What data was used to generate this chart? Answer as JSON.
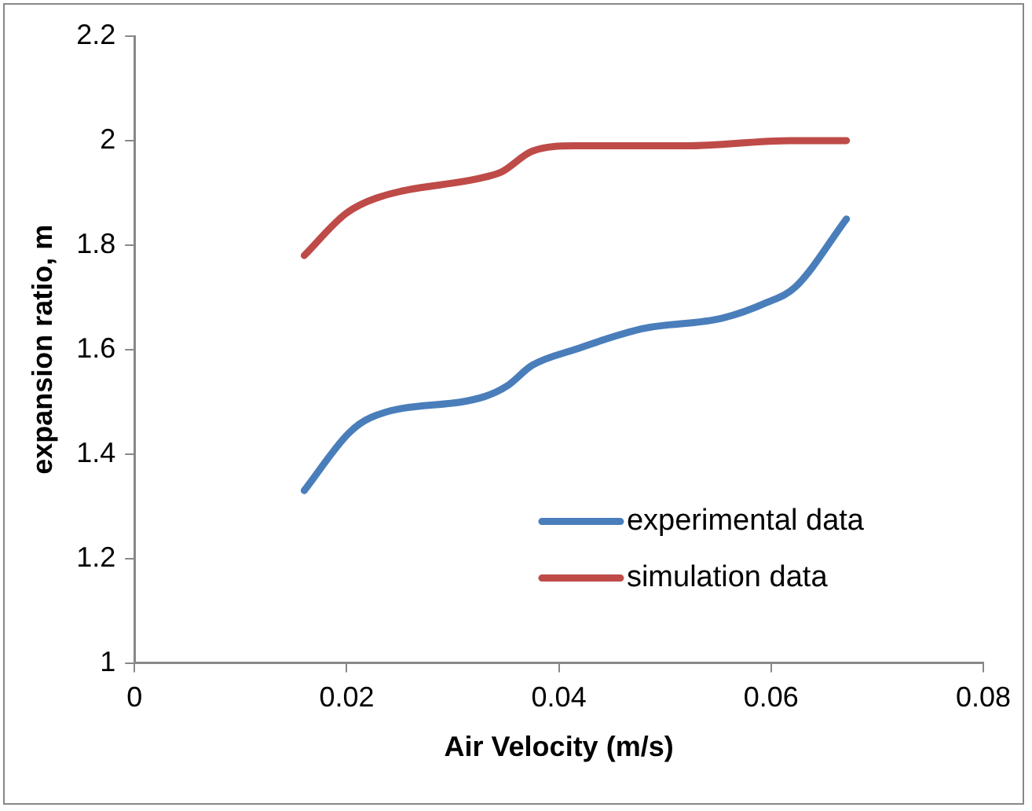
{
  "chart_data": {
    "type": "line",
    "xlabel": "Air Velocity (m/s)",
    "ylabel": "expansion ratio, m",
    "xlim": [
      0,
      0.08
    ],
    "xticks": [
      0,
      0.02,
      0.04,
      0.06,
      0.08
    ],
    "ylim": [
      1,
      2.2
    ],
    "yticks": [
      1,
      1.2,
      1.4,
      1.6,
      1.8,
      2,
      2.2
    ],
    "grid": false,
    "legend": "bottom right",
    "marker": "none",
    "line_style": "solid",
    "series": [
      {
        "name": "experimental data",
        "color": "#4a7ebb",
        "x": [
          0.016,
          0.0202,
          0.0223,
          0.033,
          0.0351,
          0.0375,
          0.0415,
          0.0479,
          0.0554,
          0.0596,
          0.0623,
          0.0671
        ],
        "values": [
          1.33,
          1.44,
          1.47,
          1.51,
          1.53,
          1.57,
          1.6,
          1.64,
          1.66,
          1.69,
          1.72,
          1.85
        ]
      },
      {
        "name": "simulation data",
        "color": "#be4b48",
        "x": [
          0.016,
          0.0199,
          0.0228,
          0.033,
          0.0346,
          0.0375,
          0.0415,
          0.052,
          0.0618,
          0.0671
        ],
        "values": [
          1.78,
          1.86,
          1.89,
          1.93,
          1.94,
          1.98,
          1.99,
          1.99,
          2.0,
          2.0
        ]
      }
    ]
  }
}
